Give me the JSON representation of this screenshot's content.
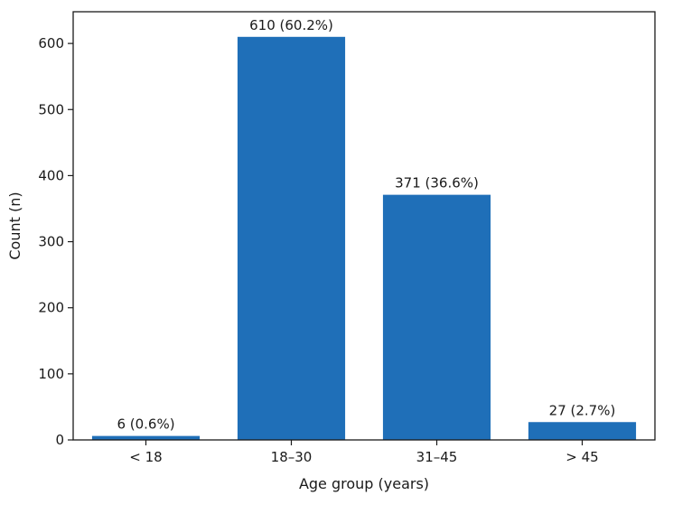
{
  "chart_data": {
    "type": "bar",
    "categories": [
      "< 18",
      "18–30",
      "31–45",
      "> 45"
    ],
    "values": [
      6,
      610,
      371,
      27
    ],
    "data_labels": [
      "6 (0.6%)",
      "610 (60.2%)",
      "371 (36.6%)",
      "27 (2.7%)"
    ],
    "title": "",
    "xlabel": "Age group (years)",
    "ylabel": "Count (n)",
    "ylim": [
      0,
      648
    ],
    "yticks": [
      0,
      100,
      200,
      300,
      400,
      500,
      600
    ],
    "grid": false,
    "legend": "none",
    "bar_color": "#1f6fb8"
  }
}
